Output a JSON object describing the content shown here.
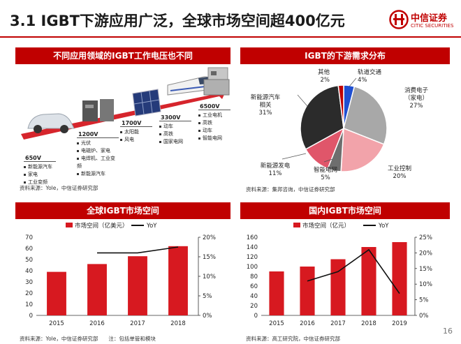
{
  "title": "3.1 IGBT下游应用广泛，全球市场空间超400亿元",
  "logo": {
    "name_cn": "中信证券",
    "name_en": "CITIC SECURITIES"
  },
  "page_number": "16",
  "panel1": {
    "title": "不同应用领域的IGBT工作电压也不同",
    "groups": [
      {
        "voltage": "650V",
        "items": [
          "新能源汽车",
          "家电",
          "工业变频"
        ]
      },
      {
        "voltage": "1200V",
        "items": [
          "光伏",
          "电磁炉、家电",
          "电焊机、工业变频",
          "新能源汽车"
        ]
      },
      {
        "voltage": "1700V",
        "items": [
          "太阳能",
          "风电"
        ]
      },
      {
        "voltage": "3300V",
        "items": [
          "动车",
          "高铁",
          "国家电网"
        ]
      },
      {
        "voltage": "6500V",
        "items": [
          "工业电机",
          "高铁",
          "动车",
          "智能电网"
        ]
      }
    ],
    "source": "资料来源：Yole，中信证券研究部"
  },
  "panel2": {
    "title": "IGBT的下游需求分布",
    "source": "资料来源：集邦咨询，中信证券研究部",
    "chart_data": {
      "type": "pie",
      "slices": [
        {
          "label": "轨道交通",
          "value": 4,
          "text": "4%",
          "color": "#1f4fd1"
        },
        {
          "label": "消费电子（家电）",
          "value": 27,
          "text": "27%",
          "color": "#a8a8a8"
        },
        {
          "label": "工业控制",
          "value": 20,
          "text": "20%",
          "color": "#f2a3aa"
        },
        {
          "label": "智能电网",
          "value": 5,
          "text": "5%",
          "color": "#6e6e6e"
        },
        {
          "label": "新能源发电",
          "value": 11,
          "text": "11%",
          "color": "#e0566a"
        },
        {
          "label": "新能源汽车相关",
          "value": 31,
          "text": "31%",
          "color": "#2b2b2b"
        },
        {
          "label": "其他",
          "value": 2,
          "text": "2%",
          "color": "#c00000"
        }
      ]
    }
  },
  "panel3": {
    "title": "全球IGBT市场空间",
    "source": "资料来源：Yole，中信证券研究部　　注：包括单管和模块",
    "chart_data": {
      "type": "bar",
      "categories": [
        "2015",
        "2016",
        "2017",
        "2018"
      ],
      "series": [
        {
          "name": "市场空间（亿美元）",
          "kind": "bar",
          "values": [
            39,
            46,
            53,
            62
          ],
          "color": "#d71920"
        },
        {
          "name": "YoY",
          "kind": "line",
          "values": [
            null,
            16,
            16,
            17.5
          ],
          "color": "#111111"
        }
      ],
      "ylim": [
        0,
        70
      ],
      "yticks": [
        "0",
        "10",
        "20",
        "30",
        "40",
        "50",
        "60",
        "70"
      ],
      "y2lim": [
        0,
        20
      ],
      "y2ticks": [
        "0%",
        "5%",
        "10%",
        "15%",
        "20%"
      ],
      "y2ticks_values": [
        0,
        5,
        10,
        15,
        20
      ]
    }
  },
  "panel4": {
    "title": "国内IGBT市场空间",
    "source": "资料来源：高工研究院，中信证券研究部",
    "chart_data": {
      "type": "bar",
      "categories": [
        "2015",
        "2016",
        "2017",
        "2018",
        "2019"
      ],
      "series": [
        {
          "name": "市场空间（亿元）",
          "kind": "bar",
          "values": [
            90,
            100,
            115,
            140,
            150
          ],
          "color": "#d71920"
        },
        {
          "name": "YoY",
          "kind": "line",
          "values": [
            null,
            11,
            14,
            21,
            7
          ],
          "color": "#111111"
        }
      ],
      "ylim": [
        0,
        160
      ],
      "yticks": [
        "0",
        "20",
        "40",
        "60",
        "80",
        "100",
        "120",
        "140",
        "160"
      ],
      "y2lim": [
        0,
        25
      ],
      "y2ticks": [
        "0%",
        "5%",
        "10%",
        "15%",
        "20%",
        "25%"
      ],
      "y2ticks_values": [
        0,
        5,
        10,
        15,
        20,
        25
      ]
    }
  }
}
